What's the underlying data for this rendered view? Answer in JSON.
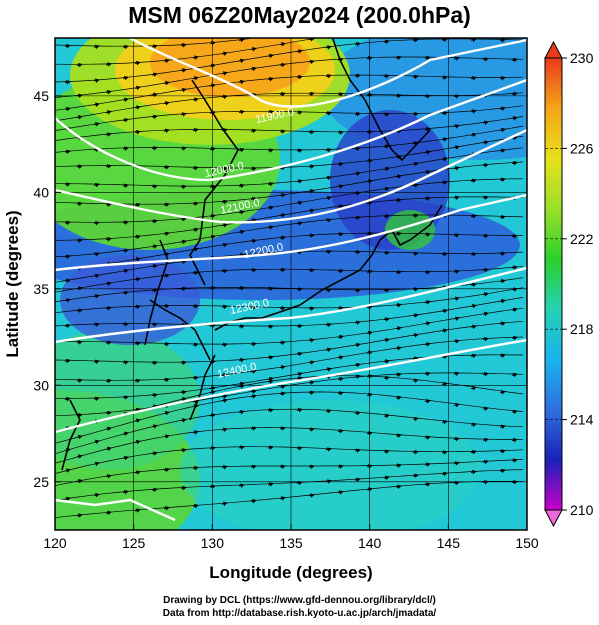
{
  "title": "MSM 06Z20May2024 (200.0hPa)",
  "map": {
    "lon_range": [
      120,
      150
    ],
    "lat_range": [
      22.5,
      48
    ],
    "xlabel": "Longitude (degrees)",
    "ylabel": "Latitude  (degrees)",
    "x_ticks": [
      {
        "value": 120,
        "label": "120"
      },
      {
        "value": 125,
        "label": "125"
      },
      {
        "value": 130,
        "label": "130"
      },
      {
        "value": 135,
        "label": "135"
      },
      {
        "value": 140,
        "label": "140"
      },
      {
        "value": 145,
        "label": "145"
      },
      {
        "value": 150,
        "label": "150"
      }
    ],
    "y_ticks": [
      {
        "value": 25,
        "label": "25"
      },
      {
        "value": 30,
        "label": "30"
      },
      {
        "value": 35,
        "label": "35"
      },
      {
        "value": 40,
        "label": "40"
      },
      {
        "value": 45,
        "label": "45"
      }
    ],
    "contour_labels": [
      {
        "text": "11900.0",
        "lon": 134.0,
        "lat": 43.8
      },
      {
        "text": "12000.0",
        "lon": 130.8,
        "lat": 41.0
      },
      {
        "text": "12100.0",
        "lon": 131.8,
        "lat": 39.1
      },
      {
        "text": "12200.0",
        "lon": 133.3,
        "lat": 36.8
      },
      {
        "text": "12300.0",
        "lon": 132.4,
        "lat": 33.9
      },
      {
        "text": "12400.0",
        "lon": 131.6,
        "lat": 30.6
      }
    ],
    "colorbar": {
      "min": 210,
      "max": 230,
      "labels": [
        {
          "value": 210,
          "label": "210"
        },
        {
          "value": 214,
          "label": "214"
        },
        {
          "value": 218,
          "label": "218"
        },
        {
          "value": 222,
          "label": "222"
        },
        {
          "value": 226,
          "label": "226"
        },
        {
          "value": 230,
          "label": "230"
        }
      ],
      "colors": [
        "#cc00cc",
        "#1a22b8",
        "#2d70e0",
        "#19b4ec",
        "#27d1b4",
        "#2ad12a",
        "#9be02a",
        "#e8e01a",
        "#f5a51a",
        "#ea3a1a"
      ]
    }
  },
  "credit": {
    "line1": "Drawing by DCL (https://www.gfd-dennou.org/library/dcl/)",
    "line2": "Data from http://database.rish.kyoto-u.ac.jp/arch/jmadata/"
  }
}
